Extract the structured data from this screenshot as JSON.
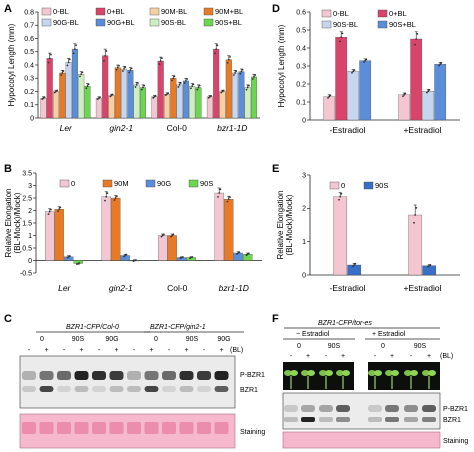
{
  "panels": {
    "A": "A",
    "B": "B",
    "C": "C",
    "D": "D",
    "E": "E",
    "F": "F"
  },
  "colors": {
    "pink": "#f4c6d2",
    "red": "#d9456a",
    "orange": "#e87a26",
    "peach": "#f7cfa3",
    "lightblue": "#c5d6ee",
    "blue": "#5b8dd9",
    "lightgreen": "#cdeec0",
    "green": "#6bd64f",
    "darkblue": "#3a6fc7",
    "staining": "#f5b8cc"
  },
  "chart_data": [
    {
      "panel": "A",
      "type": "bar",
      "ylabel": "Hypocotyl Length (mm)",
      "ylim": [
        0,
        0.8
      ],
      "yticks": [
        "0",
        "0.1",
        "0.2",
        "0.3",
        "0.4",
        "0.5",
        "0.6",
        "0.7",
        "0.8"
      ],
      "categories": [
        "Ler",
        "gin2-1",
        "Col-0",
        "bzr1-1D"
      ],
      "legend": [
        "0-BL",
        "0+BL",
        "90M-BL",
        "90M+BL",
        "90G-BL",
        "90G+BL",
        "90S-BL",
        "90S+BL"
      ],
      "series": [
        {
          "name": "0-BL",
          "color": "#f4c6d2",
          "values": [
            0.15,
            0.15,
            0.16,
            0.16
          ],
          "err": [
            0.01,
            0.01,
            0.01,
            0.01
          ]
        },
        {
          "name": "0+BL",
          "color": "#d9456a",
          "values": [
            0.45,
            0.47,
            0.43,
            0.52
          ],
          "err": [
            0.04,
            0.05,
            0.03,
            0.04
          ]
        },
        {
          "name": "90M-BL",
          "color": "#f7cfa3",
          "values": [
            0.2,
            0.17,
            0.18,
            0.2
          ],
          "err": [
            0.01,
            0.01,
            0.01,
            0.01
          ]
        },
        {
          "name": "90M+BL",
          "color": "#e87a26",
          "values": [
            0.34,
            0.38,
            0.3,
            0.44
          ],
          "err": [
            0.02,
            0.02,
            0.02,
            0.03
          ]
        },
        {
          "name": "90G-BL",
          "color": "#c5d6ee",
          "values": [
            0.42,
            0.37,
            0.25,
            0.34
          ],
          "err": [
            0.03,
            0.02,
            0.02,
            0.02
          ]
        },
        {
          "name": "90G+BL",
          "color": "#5b8dd9",
          "values": [
            0.52,
            0.36,
            0.28,
            0.35
          ],
          "err": [
            0.04,
            0.02,
            0.02,
            0.02
          ]
        },
        {
          "name": "90S-BL",
          "color": "#cdeec0",
          "values": [
            0.33,
            0.25,
            0.24,
            0.23
          ],
          "err": [
            0.02,
            0.02,
            0.02,
            0.02
          ]
        },
        {
          "name": "90S+BL",
          "color": "#6bd64f",
          "values": [
            0.24,
            0.23,
            0.23,
            0.31
          ],
          "err": [
            0.02,
            0.02,
            0.02,
            0.02
          ]
        }
      ]
    },
    {
      "panel": "B",
      "type": "bar",
      "ylabel": "Relative Elongation (BL-Mock)/Mock)",
      "ylabel1": "Relative Elongation",
      "ylabel2": "(BL-Mock)/Mock)",
      "ylim": [
        -0.5,
        3.5
      ],
      "yticks": [
        "-0.5",
        "0",
        "0.5",
        "1",
        "1.5",
        "2",
        "2.5",
        "3",
        "3.5"
      ],
      "categories": [
        "Ler",
        "gin2-1",
        "Col-0",
        "bzr1-1D"
      ],
      "legend": [
        "0",
        "90M",
        "90G",
        "90S"
      ],
      "series": [
        {
          "name": "0",
          "color": "#f4c6d2",
          "values": [
            1.95,
            2.55,
            1.0,
            2.7
          ],
          "err": [
            0.12,
            0.2,
            0.06,
            0.2
          ]
        },
        {
          "name": "90M",
          "color": "#e87a26",
          "values": [
            2.05,
            2.5,
            1.0,
            2.45
          ],
          "err": [
            0.1,
            0.1,
            0.06,
            0.12
          ]
        },
        {
          "name": "90G",
          "color": "#5b8dd9",
          "values": [
            0.15,
            0.2,
            0.12,
            0.3
          ],
          "err": [
            0.04,
            0.05,
            0.03,
            0.05
          ]
        },
        {
          "name": "90S",
          "color": "#6bd64f",
          "values": [
            -0.12,
            0.0,
            0.12,
            0.25
          ],
          "err": [
            0.03,
            0.03,
            0.03,
            0.05
          ]
        }
      ]
    },
    {
      "panel": "D",
      "type": "bar",
      "ylabel": "Hypocotyl Length (mm)",
      "ylim": [
        0,
        0.6
      ],
      "yticks": [
        "0",
        "0.1",
        "0.2",
        "0.3",
        "0.4",
        "0.5",
        "0.6"
      ],
      "categories": [
        "-Estradiol",
        "+Estradiol"
      ],
      "legend": [
        "0-BL",
        "0+BL",
        "90S-BL",
        "90S+BL"
      ],
      "series": [
        {
          "name": "0-BL",
          "color": "#f4c6d2",
          "values": [
            0.13,
            0.14
          ],
          "err": [
            0.01,
            0.01
          ]
        },
        {
          "name": "0+BL",
          "color": "#d9456a",
          "values": [
            0.46,
            0.45
          ],
          "err": [
            0.03,
            0.04
          ]
        },
        {
          "name": "90S-BL",
          "color": "#c5d6ee",
          "values": [
            0.27,
            0.16
          ],
          "err": [
            0.01,
            0.01
          ]
        },
        {
          "name": "90S+BL",
          "color": "#5b8dd9",
          "values": [
            0.33,
            0.31
          ],
          "err": [
            0.01,
            0.01
          ]
        }
      ]
    },
    {
      "panel": "E",
      "type": "bar",
      "ylabel": "Relative Elongation (BL-Mock)/Mock)",
      "ylabel1": "Relative Elongation",
      "ylabel2": "(BL-Mock)/Mock)",
      "ylim": [
        0,
        3
      ],
      "yticks": [
        "0",
        "1",
        "2",
        "3"
      ],
      "categories": [
        "-Estradiol",
        "+Estradiol"
      ],
      "legend": [
        "0",
        "90S"
      ],
      "series": [
        {
          "name": "0",
          "color": "#f4c6d2",
          "values": [
            2.35,
            1.8
          ],
          "err": [
            0.12,
            0.3
          ]
        },
        {
          "name": "90S",
          "color": "#3a6fc7",
          "values": [
            0.3,
            0.28
          ],
          "err": [
            0.05,
            0.03
          ]
        }
      ]
    }
  ],
  "blotC": {
    "header1": "BZR1-CFP/Col-0",
    "header2": "BZR1-CFP/gin2-1",
    "groups": [
      "0",
      "90S",
      "90G",
      "0",
      "90S",
      "90G"
    ],
    "signs": [
      "-",
      "+",
      "-",
      "+",
      "-",
      "+",
      "-",
      "+",
      "-",
      "+",
      "-",
      "+"
    ],
    "bl": "(BL)",
    "pbzr1": "P-BZR1",
    "bzr1": "BZR1",
    "staining": "Staining"
  },
  "blotF": {
    "header": "BZR1-CFP/tor-es",
    "minus": "− Estradiol",
    "plus": "+ Estradiol",
    "groups": [
      "0",
      "90S",
      "0",
      "90S"
    ],
    "signs": [
      "-",
      "+",
      "-",
      "+",
      "-",
      "+",
      "-",
      "+"
    ],
    "bl": "(BL)",
    "pbzr1": "P-BZR1",
    "bzr1": "BZR1",
    "staining": "Staining"
  }
}
